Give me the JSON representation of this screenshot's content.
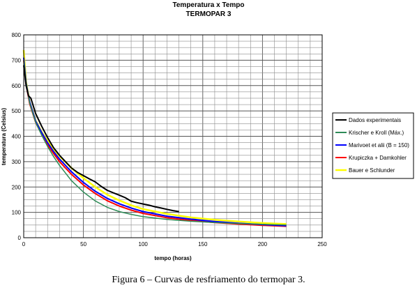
{
  "figure_caption": "Figura 6 – Curvas de resfriamento do termopar 3.",
  "chart_data": {
    "type": "line",
    "title": "Temperatura x Tempo",
    "subtitle": "TERMOPAR 3",
    "xlabel": "tempo (horas)",
    "ylabel": "temperatura (Celsius)",
    "xlim": [
      0,
      250
    ],
    "ylim": [
      0,
      800
    ],
    "xticks": [
      0,
      50,
      100,
      150,
      200,
      250
    ],
    "yticks": [
      0,
      100,
      200,
      300,
      400,
      500,
      600,
      700,
      800
    ],
    "grid": true,
    "legend_position": "right",
    "series": [
      {
        "name": "Dados experimentais",
        "color": "#000000",
        "width": 2,
        "x": [
          0,
          2,
          4,
          6,
          8,
          10,
          15,
          20,
          25,
          30,
          35,
          40,
          45,
          50,
          55,
          60,
          65,
          70,
          75,
          80,
          85,
          90,
          95,
          100,
          105,
          110,
          115,
          120,
          125,
          130
        ],
        "y": [
          680,
          600,
          560,
          550,
          520,
          490,
          440,
          395,
          355,
          325,
          300,
          275,
          258,
          245,
          232,
          220,
          202,
          187,
          177,
          168,
          158,
          144,
          138,
          133,
          128,
          122,
          117,
          112,
          107,
          103
        ]
      },
      {
        "name": "Krischer e Kroll (Máx.)",
        "color": "#2e8b57",
        "width": 1.5,
        "x": [
          0,
          2,
          5,
          10,
          15,
          20,
          25,
          30,
          40,
          50,
          60,
          70,
          80,
          90,
          100,
          120,
          140,
          160,
          180,
          200,
          220
        ],
        "y": [
          700,
          610,
          530,
          455,
          405,
          360,
          320,
          285,
          225,
          180,
          145,
          120,
          103,
          92,
          83,
          72,
          65,
          60,
          56,
          53,
          50
        ]
      },
      {
        "name": "Marivoet et alii (B = 150)",
        "color": "#0000ff",
        "width": 2,
        "x": [
          0,
          2,
          5,
          10,
          15,
          20,
          25,
          30,
          40,
          50,
          60,
          70,
          80,
          90,
          100,
          120,
          140,
          160,
          180,
          200,
          220
        ],
        "y": [
          710,
          610,
          535,
          460,
          415,
          375,
          340,
          310,
          260,
          218,
          183,
          155,
          134,
          117,
          103,
          85,
          73,
          64,
          57,
          52,
          47
        ]
      },
      {
        "name": "Krupiczka + Damkohler",
        "color": "#ff0000",
        "width": 2,
        "x": [
          0,
          2,
          5,
          10,
          15,
          20,
          25,
          30,
          40,
          50,
          60,
          70,
          80,
          90,
          100,
          120,
          140,
          160,
          180,
          200,
          220
        ],
        "y": [
          700,
          605,
          528,
          455,
          408,
          367,
          332,
          300,
          250,
          208,
          174,
          146,
          125,
          109,
          96,
          79,
          68,
          60,
          54,
          49,
          45
        ]
      },
      {
        "name": "Bauer e Schlunder",
        "color": "#ffff00",
        "width": 2.5,
        "x": [
          0,
          2,
          5,
          10,
          15,
          20,
          25,
          30,
          40,
          50,
          60,
          70,
          80,
          90,
          100,
          120,
          140,
          160,
          180,
          200,
          220
        ],
        "y": [
          740,
          615,
          535,
          462,
          418,
          382,
          350,
          322,
          275,
          235,
          200,
          170,
          147,
          128,
          113,
          94,
          80,
          71,
          64,
          58,
          54
        ]
      }
    ]
  }
}
